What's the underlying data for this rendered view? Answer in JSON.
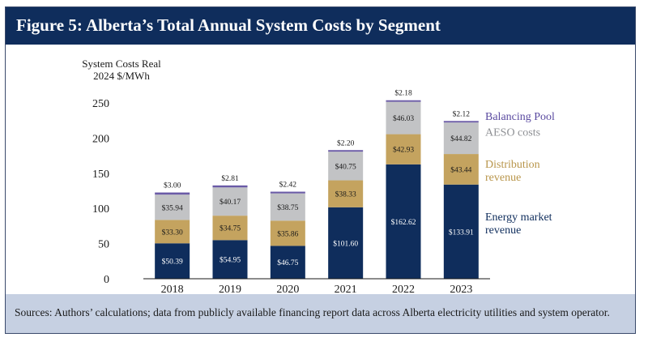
{
  "figure": {
    "title": "Figure 5: Alberta’s Total Annual System Costs by Segment",
    "source": "Sources: Authors’ calculations; data from publicly available financing report data across Alberta electricity utilities and system operator."
  },
  "chart_data": {
    "type": "bar",
    "stacked": true,
    "ylabel": "System Costs Real\n2024 $/MWh",
    "xlabel": "",
    "ylim": [
      0,
      250
    ],
    "yticks": [
      0,
      50,
      100,
      150,
      200,
      250
    ],
    "grid": false,
    "legend_position": "right",
    "categories": [
      "2018",
      "2019",
      "2020",
      "2021",
      "2022",
      "2023"
    ],
    "series": [
      {
        "name": "Energy market revenue",
        "color": "#0f2d5c",
        "label_color": "#ffffff",
        "values": [
          50.39,
          54.95,
          46.75,
          101.6,
          162.62,
          133.91
        ],
        "labels": [
          "$50.39",
          "$54.95",
          "$46.75",
          "$101.60",
          "$162.62",
          "$133.91"
        ]
      },
      {
        "name": "Distribution revenue",
        "color": "#c4a35f",
        "label_color": "#1a1a1a",
        "values": [
          33.3,
          34.75,
          35.86,
          38.33,
          42.93,
          43.44
        ],
        "labels": [
          "$33.30",
          "$34.75",
          "$35.86",
          "$38.33",
          "$42.93",
          "$43.44"
        ]
      },
      {
        "name": "AESO costs",
        "color": "#c2c3c5",
        "label_color": "#1a1a1a",
        "values": [
          35.94,
          40.17,
          38.75,
          40.75,
          46.03,
          44.82
        ],
        "labels": [
          "$35.94",
          "$40.17",
          "$38.75",
          "$40.75",
          "$46.03",
          "$44.82"
        ]
      },
      {
        "name": "Balancing Pool",
        "color": "#6a5aa6",
        "label_color": "#1a1a1a",
        "values": [
          3.0,
          2.81,
          2.42,
          2.2,
          2.18,
          2.12
        ],
        "labels": [
          "$3.00",
          "$2.81",
          "$2.42",
          "$2.20",
          "$2.18",
          "$2.12"
        ]
      }
    ],
    "legend": [
      {
        "lines": [
          "Balancing Pool"
        ],
        "color": "#5a4aa0"
      },
      {
        "lines": [
          "AESO costs"
        ],
        "color": "#8e9094"
      },
      {
        "lines": [
          "Distribution",
          "revenue"
        ],
        "color": "#b8954a"
      },
      {
        "lines": [
          "Energy market",
          "revenue"
        ],
        "color": "#0f2d5c"
      }
    ]
  }
}
